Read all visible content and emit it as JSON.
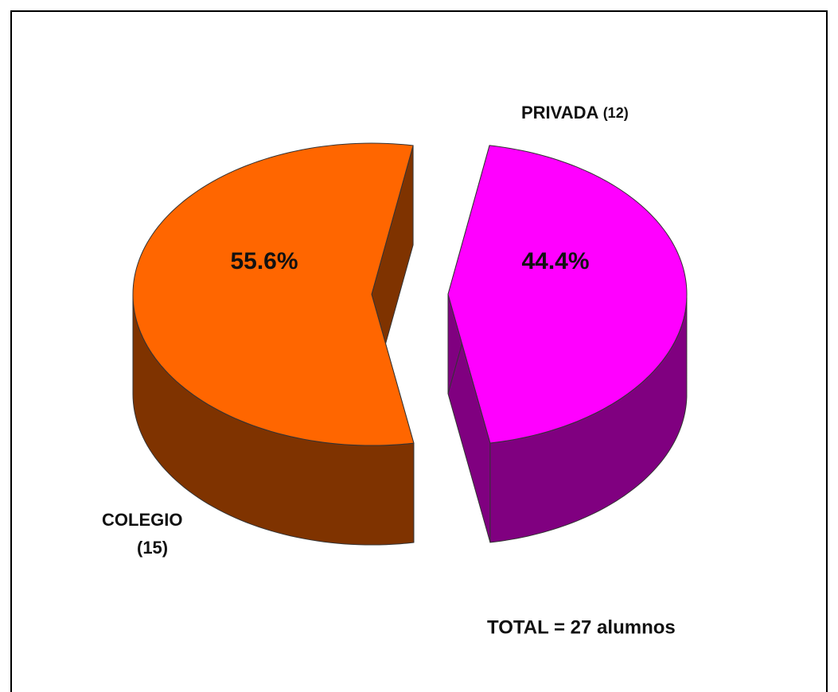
{
  "chart_data": {
    "type": "pie3d",
    "categories": [
      "COLEGIO",
      "PRIVADA"
    ],
    "count_labels": [
      "(15)",
      "(12)"
    ],
    "counts": [
      15,
      12
    ],
    "values": [
      55.6,
      44.4
    ],
    "value_labels": [
      "55.6%",
      "44.4%"
    ],
    "colors": [
      "#ff6600",
      "#ff00ff"
    ],
    "side_colors": [
      "#7f3300",
      "#800080"
    ],
    "annotation": "TOTAL = 27 alumnos"
  }
}
